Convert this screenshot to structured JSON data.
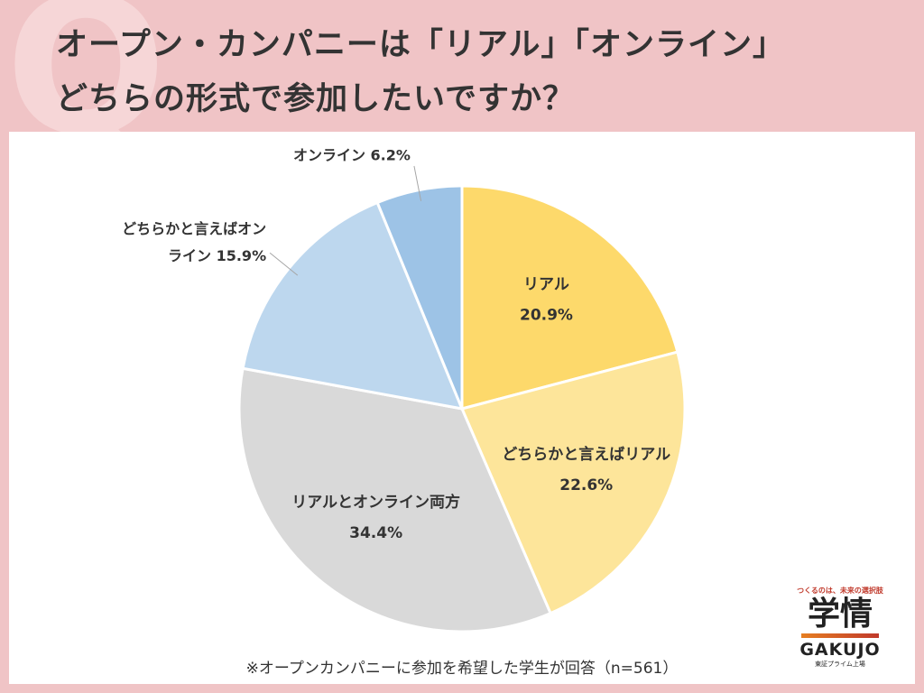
{
  "title_lines": [
    "オープン・カンパニーは「リアル」「オンライン」",
    "どちらの形式で参加したいですか？"
  ],
  "q_mark": "Q",
  "note": "※オープンカンパニーに参加を希望した学生が回答（n=561）",
  "brand": {
    "tagline": "つくるのは、未来の選択肢",
    "kanji": "学情",
    "latin": "GAKUJO",
    "sub": "東証プライム上場"
  },
  "chart_data": {
    "type": "pie",
    "title": "",
    "slices": [
      {
        "label_lines": [
          "リアル"
        ],
        "value_text": "20.9%",
        "value": 20.9,
        "color": "#fdd96b",
        "label_pos": "inside"
      },
      {
        "label_lines": [
          "どちらかと言えばリアル"
        ],
        "value_text": "22.6%",
        "value": 22.6,
        "color": "#fde59a",
        "label_pos": "inside"
      },
      {
        "label_lines": [
          "リアルとオンライン両方"
        ],
        "value_text": "34.4%",
        "value": 34.4,
        "color": "#d9d9d9",
        "label_pos": "inside"
      },
      {
        "label_lines": [
          "どちらかと言えばオン",
          "ライン"
        ],
        "value_text": "15.9%",
        "value": 15.9,
        "color": "#bdd7ee",
        "label_pos": "outside"
      },
      {
        "label_lines": [
          "オンライン"
        ],
        "value_text": "6.2%",
        "value": 6.2,
        "color": "#9dc3e6",
        "label_pos": "outside"
      }
    ]
  }
}
